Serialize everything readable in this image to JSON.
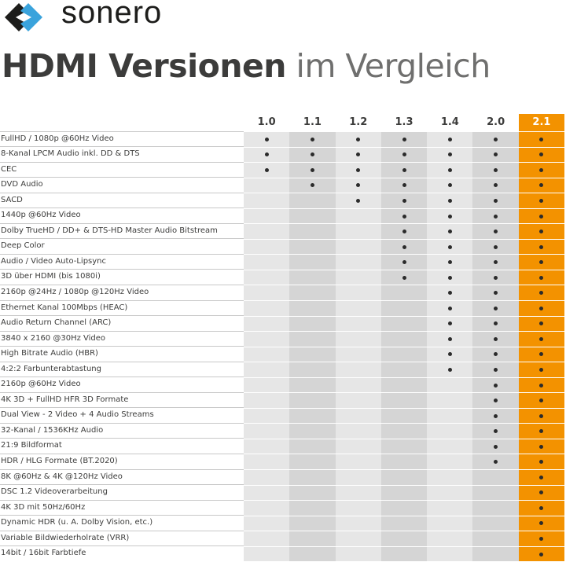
{
  "brand": {
    "name": "sonero",
    "colors": {
      "dark": "#1d1d1b",
      "blue": "#3aa3dc"
    }
  },
  "title": {
    "bold": "HDMI Versionen",
    "light": "im Vergleich"
  },
  "accent": "#f39200",
  "versions": [
    "1.0",
    "1.1",
    "1.2",
    "1.3",
    "1.4",
    "2.0",
    "2.1"
  ],
  "highlight_version": "2.1",
  "features": [
    {
      "label": "FullHD / 1080p @60Hz Video",
      "since": "1.0"
    },
    {
      "label": "8-Kanal LPCM Audio inkl. DD & DTS",
      "since": "1.0"
    },
    {
      "label": "CEC",
      "since": "1.0"
    },
    {
      "label": "DVD Audio",
      "since": "1.1"
    },
    {
      "label": "SACD",
      "since": "1.2"
    },
    {
      "label": "1440p @60Hz Video",
      "since": "1.3"
    },
    {
      "label": "Dolby TrueHD / DD+ & DTS-HD Master Audio Bitstream",
      "since": "1.3"
    },
    {
      "label": "Deep Color",
      "since": "1.3"
    },
    {
      "label": "Audio / Video Auto-Lipsync",
      "since": "1.3"
    },
    {
      "label": "3D über HDMI (bis 1080i)",
      "since": "1.3"
    },
    {
      "label": "2160p @24Hz / 1080p @120Hz Video",
      "since": "1.4"
    },
    {
      "label": "Ethernet Kanal 100Mbps (HEAC)",
      "since": "1.4"
    },
    {
      "label": "Audio Return Channel (ARC)",
      "since": "1.4"
    },
    {
      "label": "3840 x 2160 @30Hz Video",
      "since": "1.4"
    },
    {
      "label": "High Bitrate Audio (HBR)",
      "since": "1.4"
    },
    {
      "label": "4:2:2 Farbunterabtastung",
      "since": "1.4"
    },
    {
      "label": "2160p @60Hz Video",
      "since": "2.0"
    },
    {
      "label": "4K 3D + FullHD HFR 3D Formate",
      "since": "2.0"
    },
    {
      "label": "Dual View - 2 Video + 4 Audio Streams",
      "since": "2.0"
    },
    {
      "label": "32-Kanal / 1536KHz Audio",
      "since": "2.0"
    },
    {
      "label": "21:9 Bildformat",
      "since": "2.0"
    },
    {
      "label": "HDR / HLG Formate (BT.2020)",
      "since": "2.0"
    },
    {
      "label": "8K @60Hz & 4K @120Hz Video",
      "since": "2.1"
    },
    {
      "label": "DSC 1.2 Videoverarbeitung",
      "since": "2.1"
    },
    {
      "label": "4K 3D mit 50Hz/60Hz",
      "since": "2.1"
    },
    {
      "label": "Dynamic HDR (u. A. Dolby Vision, etc.)",
      "since": "2.1"
    },
    {
      "label": "Variable Bildwiederholrate (VRR)",
      "since": "2.1"
    },
    {
      "label": "14bit / 16bit Farbtiefe",
      "since": "2.1"
    }
  ]
}
